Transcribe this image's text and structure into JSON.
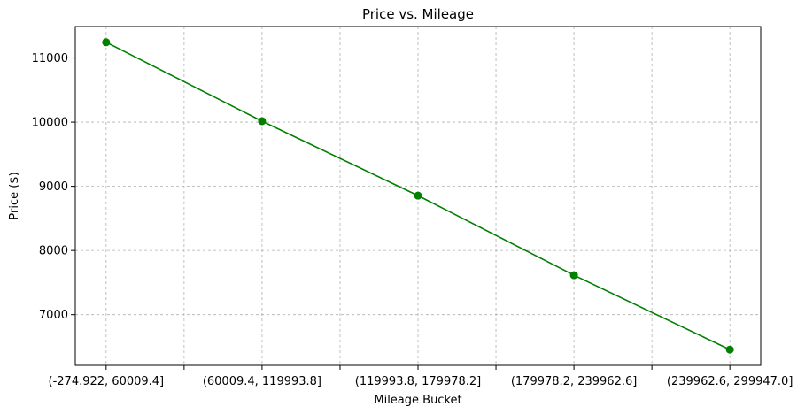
{
  "chart_data": {
    "type": "line",
    "title": "Price vs. Mileage",
    "xlabel": "Mileage Bucket",
    "ylabel": "Price ($)",
    "categories": [
      "(-274.922, 60009.4]",
      "(60009.4, 119993.8]",
      "(119993.8, 179978.2]",
      "(179978.2, 239962.6]",
      "(239962.6, 299947.0]"
    ],
    "series": [
      {
        "values": [
          11245,
          10015,
          8855,
          7615,
          6455
        ],
        "color": "#008000",
        "marker": "circle"
      }
    ],
    "yticks": [
      7000,
      8000,
      9000,
      10000,
      11000
    ],
    "ytick_labels": [
      "7000",
      "8000",
      "9000",
      "10000",
      "11000"
    ],
    "ylim": [
      6210,
      11490
    ],
    "grid": true,
    "grid_color": "#b0b0b0",
    "grid_style": "dashed"
  }
}
